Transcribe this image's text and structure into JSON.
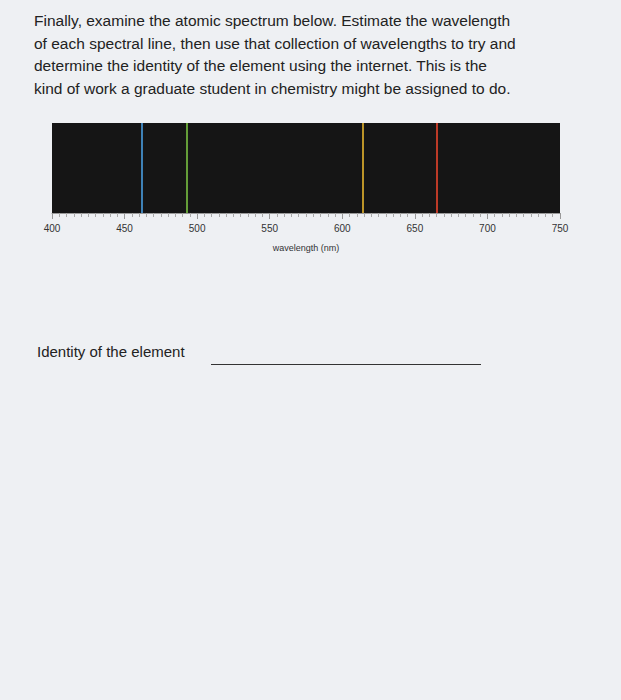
{
  "instructions": [
    "Finally, examine the atomic spectrum below. Estimate the wavelength",
    "of each spectral line, then use that collection of wavelengths to try and",
    "determine the identity of the element using the internet. This is the",
    "kind of work a graduate student in chemistry might be assigned to do."
  ],
  "answer_label": "Identity of the element",
  "chart_data": {
    "type": "spectrum",
    "x_label": "wavelength (nm)",
    "x": [
      462,
      493,
      614,
      665
    ],
    "colors": [
      "#4a9ee0",
      "#79c142",
      "#e6b52e",
      "#e8442c"
    ],
    "xlim": [
      400,
      750
    ],
    "xticks": [
      400,
      450,
      500,
      550,
      600,
      650,
      700,
      750
    ],
    "tick_labels": "x",
    "grid": false
  }
}
